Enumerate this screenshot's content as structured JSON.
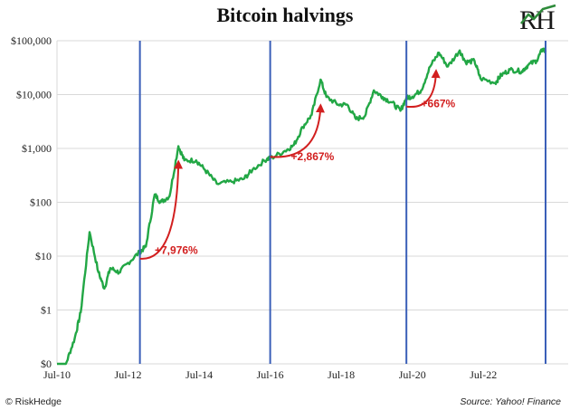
{
  "chart_data": {
    "type": "line",
    "title": "Bitcoin halvings",
    "y_scale": "log",
    "ylim": [
      0.1,
      100000
    ],
    "xlim": [
      "2010-07",
      "2024-04"
    ],
    "y_ticks": [
      {
        "value": 100000,
        "label": "$100,000"
      },
      {
        "value": 10000,
        "label": "$10,000"
      },
      {
        "value": 1000,
        "label": "$1,000"
      },
      {
        "value": 100,
        "label": "$100"
      },
      {
        "value": 10,
        "label": "$10"
      },
      {
        "value": 1,
        "label": "$1"
      },
      {
        "value": 0.1,
        "label": "$0"
      }
    ],
    "x_ticks": [
      {
        "value": "2010-07",
        "label": "Jul-10"
      },
      {
        "value": "2012-07",
        "label": "Jul-12"
      },
      {
        "value": "2014-07",
        "label": "Jul-14"
      },
      {
        "value": "2016-07",
        "label": "Jul-16"
      },
      {
        "value": "2018-07",
        "label": "Jul-18"
      },
      {
        "value": "2020-07",
        "label": "Jul-20"
      },
      {
        "value": "2022-07",
        "label": "Jul-22"
      }
    ],
    "halvings": [
      "2012-11",
      "2016-07",
      "2020-05",
      "2024-04"
    ],
    "series": [
      {
        "color": "#22a745",
        "points": [
          [
            "2010-07",
            0.06
          ],
          [
            "2010-10",
            0.1
          ],
          [
            "2011-01",
            0.3
          ],
          [
            "2011-03",
            0.9
          ],
          [
            "2011-06",
            28
          ],
          [
            "2011-09",
            5
          ],
          [
            "2011-11",
            2.5
          ],
          [
            "2012-01",
            6
          ],
          [
            "2012-04",
            5
          ],
          [
            "2012-07",
            7.5
          ],
          [
            "2012-11",
            12
          ],
          [
            "2013-01",
            15
          ],
          [
            "2013-04",
            140
          ],
          [
            "2013-06",
            100
          ],
          [
            "2013-09",
            130
          ],
          [
            "2013-12",
            1100
          ],
          [
            "2014-02",
            600
          ],
          [
            "2014-06",
            600
          ],
          [
            "2014-09",
            400
          ],
          [
            "2015-01",
            220
          ],
          [
            "2015-06",
            240
          ],
          [
            "2015-10",
            270
          ],
          [
            "2016-01",
            400
          ],
          [
            "2016-06",
            650
          ],
          [
            "2016-07",
            650
          ],
          [
            "2016-12",
            900
          ],
          [
            "2017-03",
            1150
          ],
          [
            "2017-06",
            2500
          ],
          [
            "2017-09",
            4200
          ],
          [
            "2017-12",
            19000
          ],
          [
            "2018-02",
            9000
          ],
          [
            "2018-06",
            6500
          ],
          [
            "2018-09",
            6500
          ],
          [
            "2018-12",
            3500
          ],
          [
            "2019-03",
            4000
          ],
          [
            "2019-06",
            12000
          ],
          [
            "2019-09",
            9000
          ],
          [
            "2019-12",
            7200
          ],
          [
            "2020-03",
            5000
          ],
          [
            "2020-05",
            8800
          ],
          [
            "2020-07",
            9200
          ],
          [
            "2020-10",
            12000
          ],
          [
            "2021-01",
            33000
          ],
          [
            "2021-04",
            60000
          ],
          [
            "2021-07",
            33000
          ],
          [
            "2021-11",
            66000
          ],
          [
            "2022-01",
            40000
          ],
          [
            "2022-04",
            42000
          ],
          [
            "2022-06",
            20000
          ],
          [
            "2022-11",
            16500
          ],
          [
            "2023-01",
            23000
          ],
          [
            "2023-04",
            29000
          ],
          [
            "2023-08",
            27000
          ],
          [
            "2023-10",
            35000
          ],
          [
            "2024-01",
            43000
          ],
          [
            "2024-03",
            70000
          ],
          [
            "2024-04",
            63000
          ]
        ]
      }
    ],
    "annotations": [
      {
        "label": "+7,976%",
        "from": [
          "2012-11",
          9
        ],
        "to": [
          "2013-12",
          720
        ],
        "text_at": [
          "2013-04",
          11
        ]
      },
      {
        "label": "+2,867%",
        "from": [
          "2016-07",
          700
        ],
        "to": [
          "2017-12",
          8000
        ],
        "text_at": [
          "2017-02",
          600
        ]
      },
      {
        "label": "+667%",
        "from": [
          "2020-05",
          6000
        ],
        "to": [
          "2021-03",
          35000
        ],
        "text_at": [
          "2020-10",
          5800
        ]
      }
    ]
  },
  "footer": {
    "credit": "© RiskHedge",
    "source": "Source: Yahoo! Finance"
  },
  "logo": {
    "text": "RH",
    "colors": [
      "#1a1a1a",
      "#2e8b3a"
    ]
  }
}
